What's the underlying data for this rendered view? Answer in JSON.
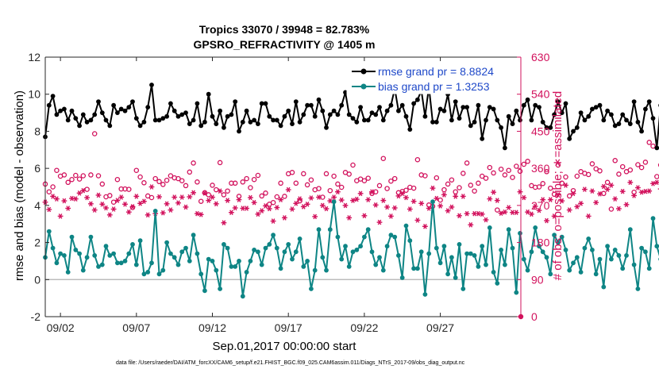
{
  "chart_data": {
    "type": "line",
    "title": "Tropics 33070 / 39948 = 82.783%",
    "subtitle": "GPSRO_REFRACTIVITY @ 1405 m",
    "xlabel": "Sep.01,2017 00:00:00 start",
    "ylabel_left": "rmse and bias (model - observation)",
    "ylabel_right": "# of obs: o=possible; ∗=assimilated",
    "footer": "data file: /Users/raeder/DAI/ATM_forcXX/CAM6_setup/f.e21.FHIST_BGC.f09_025.CAM6assim.011/Diags_NTrS_2017-09/obs_diag_output.nc",
    "x_range_days": [
      0,
      31.3
    ],
    "x_ticks": [
      {
        "day": 1,
        "label": "09/02"
      },
      {
        "day": 6,
        "label": "09/07"
      },
      {
        "day": 11,
        "label": "09/12"
      },
      {
        "day": 16,
        "label": "09/17"
      },
      {
        "day": 21,
        "label": "09/22"
      },
      {
        "day": 26,
        "label": "09/27"
      }
    ],
    "y_left": {
      "min": -2,
      "max": 12,
      "ticks": [
        -2,
        0,
        2,
        4,
        6,
        8,
        10,
        12
      ]
    },
    "y_right": {
      "min": 0,
      "max": 630,
      "ticks": [
        0,
        90,
        180,
        270,
        360,
        450,
        540,
        630
      ]
    },
    "zero_line": 0,
    "step_days": 0.25,
    "series": [
      {
        "name": "rmse",
        "legend": "rmse grand pr = 8.8824",
        "axis": "left",
        "color": "#000000",
        "marker": "filled-circle",
        "values": [
          7.7,
          9.4,
          9.9,
          8.9,
          9.1,
          9.2,
          8.6,
          9.1,
          8.7,
          8.3,
          8.9,
          8.5,
          8.6,
          8.9,
          9.6,
          9.0,
          8.6,
          8.3,
          9.4,
          9.0,
          9.2,
          9.1,
          9.3,
          9.6,
          8.7,
          8.3,
          8.5,
          9.3,
          10.5,
          8.6,
          8.6,
          8.7,
          8.8,
          9.5,
          9.1,
          8.8,
          8.9,
          9.0,
          8.4,
          8.6,
          9.5,
          8.3,
          8.5,
          10.0,
          8.8,
          8.4,
          9.1,
          8.2,
          8.8,
          8.9,
          9.6,
          8.0,
          8.5,
          9.1,
          8.5,
          8.6,
          8.4,
          9.5,
          9.5,
          8.8,
          8.6,
          8.6,
          8.3,
          8.8,
          9.1,
          8.4,
          9.6,
          8.5,
          8.9,
          9.4,
          9.4,
          8.8,
          9.7,
          9.1,
          8.2,
          8.9,
          9.1,
          8.9,
          9.4,
          10.1,
          8.9,
          8.7,
          8.5,
          9.3,
          8.6,
          8.6,
          9.0,
          8.9,
          9.3,
          8.6,
          9.1,
          9.4,
          10.3,
          9.1,
          9.4,
          8.8,
          8.1,
          9.5,
          9.7,
          10.2,
          8.8,
          10.4,
          8.5,
          8.5,
          9.2,
          9.1,
          10.0,
          8.6,
          9.6,
          8.7,
          9.3,
          9.3,
          8.3,
          8.5,
          9.4,
          7.6,
          8.6,
          9.3,
          9.2,
          8.6,
          8.2,
          7.1,
          8.8,
          8.4,
          9.1,
          8.6,
          9.4,
          9.7,
          8.6,
          9.4,
          9.3,
          8.5,
          8.2,
          8.2,
          8.9,
          9.6,
          9.0,
          9.5,
          7.6,
          8.0,
          8.2,
          9.0,
          8.6,
          8.8,
          9.2,
          9.3,
          9.4,
          8.6,
          9.1,
          8.9,
          8.3,
          8.4,
          8.9,
          8.6,
          8.4,
          9.6,
          8.5,
          8.0,
          9.2,
          9.6,
          8.7,
          7.1,
          9.4,
          9.2,
          8.3,
          9.6,
          8.4,
          9.1,
          9.1,
          9.3,
          9.2,
          8.9,
          9.9,
          9.0,
          9.0,
          9.0
        ]
      },
      {
        "name": "bias",
        "legend": "bias grand pr = 1.3253",
        "axis": "left",
        "color": "#0e8585",
        "marker": "filled-circle",
        "values": [
          1.2,
          2.6,
          1.7,
          0.9,
          1.4,
          1.3,
          0.4,
          2.3,
          1.6,
          1.4,
          0.5,
          1.2,
          2.3,
          1.3,
          0.7,
          0.8,
          1.8,
          1.3,
          1.4,
          0.9,
          0.9,
          1.0,
          1.4,
          1.9,
          0.8,
          2.1,
          0.3,
          0.4,
          0.9,
          3.7,
          0.3,
          0.5,
          2.0,
          1.4,
          1.2,
          0.8,
          1.5,
          1.7,
          1.0,
          2.4,
          1.4,
          0.3,
          -0.6,
          1.1,
          1.0,
          0.5,
          -0.5,
          1.9,
          1.7,
          0.7,
          0.7,
          1.0,
          -0.9,
          0.4,
          1.0,
          1.6,
          1.5,
          0.8,
          1.7,
          1.9,
          2.4,
          1.7,
          0.6,
          1.5,
          1.9,
          1.1,
          1.5,
          2.2,
          0.7,
          1.0,
          -0.5,
          0.5,
          2.7,
          1.2,
          0.5,
          2.7,
          4.2,
          2.3,
          1.1,
          1.8,
          0.7,
          1.5,
          1.6,
          1.8,
          2.3,
          2.7,
          1.5,
          0.8,
          1.2,
          0.5,
          1.8,
          2.4,
          2.3,
          1.3,
          0.1,
          2.9,
          2.1,
          0.6,
          0.6,
          1.5,
          -0.8,
          1.4,
          4.2,
          1.7,
          0.9,
          1.8,
          0.3,
          1.2,
          0.1,
          1.9,
          -0.5,
          1.4,
          1.4,
          1.3,
          0.7,
          1.8,
          0.8,
          2.8,
          0.4,
          -0.2,
          1.6,
          0.8,
          2.7,
          1.7,
          -0.7,
          2.5,
          1.1,
          0.5,
          1.5,
          2.8,
          1.8,
          1.5,
          1.2,
          0.3,
          2.4,
          2.0,
          2.3,
          1.6,
          0.5,
          0.9,
          1.2,
          0.4,
          1.7,
          2.2,
          1.6,
          0.3,
          1.1,
          -0.4,
          1.8,
          1.1,
          1.6,
          1.3,
          0.6,
          1.3,
          2.7,
          0.8,
          -0.5,
          1.7,
          1.5,
          0.6,
          3.3,
          1.8,
          1.1,
          0.4,
          0.9,
          1.8,
          2.0,
          1.5,
          -0.7,
          1.1,
          2.9,
          -1.5,
          0.3,
          0.0,
          2.1,
          3.0
        ]
      },
      {
        "name": "obs-possible",
        "axis": "right",
        "color": "#d2115c",
        "marker": "open-circle",
        "values": [
          322,
          303,
          315,
          355,
          341,
          344,
          326,
          333,
          343,
          334,
          342,
          309,
          344,
          444,
          342,
          322,
          291,
          294,
          278,
          333,
          310,
          310,
          309,
          265,
          355,
          339,
          325,
          293,
          289,
          335,
          328,
          321,
          331,
          342,
          337,
          335,
          330,
          318,
          351,
          373,
          327,
          280,
          301,
          296,
          319,
          308,
          374,
          296,
          305,
          324,
          324,
          292,
          327,
          335,
          313,
          333,
          343,
          293,
          300,
          273,
          277,
          291,
          324,
          292,
          347,
          350,
          324,
          281,
          347,
          320,
          332,
          308,
          311,
          290,
          347,
          306,
          341,
          322,
          314,
          350,
          346,
          368,
          330,
          334,
          330,
          336,
          299,
          303,
          318,
          384,
          311,
          329,
          335,
          301,
          304,
          307,
          314,
          312,
          381,
          344,
          342,
          271,
          268,
          337,
          283,
          308,
          322,
          332,
          303,
          313,
          348,
          373,
          319,
          305,
          324,
          341,
          336,
          362,
          349,
          259,
          358,
          344,
          355,
          338,
          365,
          353,
          370,
          377,
          318,
          314,
          315,
          323,
          352,
          312,
          297,
          368,
          324,
          339,
          293,
          306,
          341,
          352,
          348,
          345,
          371,
          359,
          354,
          299,
          326,
          261,
          379,
          346,
          364,
          352,
          356,
          302,
          369,
          362,
          375,
          423,
          414,
          340,
          368,
          323,
          410,
          346,
          417,
          380,
          373,
          362,
          371,
          369,
          375,
          380,
          392,
          423,
          485,
          436
        ]
      },
      {
        "name": "obs-assimilated",
        "axis": "right",
        "color": "#d2115c",
        "marker": "asterisk",
        "values": [
          278,
          260,
          292,
          286,
          244,
          281,
          263,
          287,
          286,
          300,
          306,
          289,
          274,
          259,
          295,
          273,
          264,
          247,
          261,
          282,
          290,
          273,
          254,
          267,
          292,
          275,
          280,
          247,
          315,
          250,
          291,
          252,
          274,
          259,
          290,
          276,
          290,
          266,
          291,
          301,
          250,
          248,
          300,
          282,
          290,
          274,
          305,
          228,
          282,
          253,
          264,
          284,
          263,
          263,
          289,
          277,
          249,
          257,
          269,
          262,
          232,
          265,
          284,
          240,
          308,
          261,
          275,
          286,
          267,
          273,
          288,
          243,
          290,
          270,
          262,
          281,
          290,
          303,
          283,
          270,
          240,
          282,
          285,
          299,
          245,
          284,
          303,
          271,
          229,
          282,
          266,
          244,
          264,
          293,
          299,
          289,
          261,
          280,
          234,
          275,
          219,
          263,
          312,
          287,
          269,
          296,
          257,
          266,
          292,
          245,
          292,
          250,
          223,
          250,
          250,
          249,
          235,
          286,
          302,
          282,
          251,
          254,
          265,
          253,
          253,
          303,
          289,
          254,
          249,
          268,
          258,
          284,
          233,
          284,
          244,
          296,
          281,
          319,
          259,
          299,
          267,
          275,
          309,
          244,
          305,
          277,
          298,
          316,
          309,
          319,
          286,
          262,
          304,
          272,
          326,
          294,
          313,
          302,
          304,
          305,
          323,
          326,
          310,
          309,
          309,
          327,
          330,
          307,
          314,
          354,
          345,
          330,
          313,
          348,
          337,
          356,
          351,
          316
        ]
      }
    ]
  }
}
